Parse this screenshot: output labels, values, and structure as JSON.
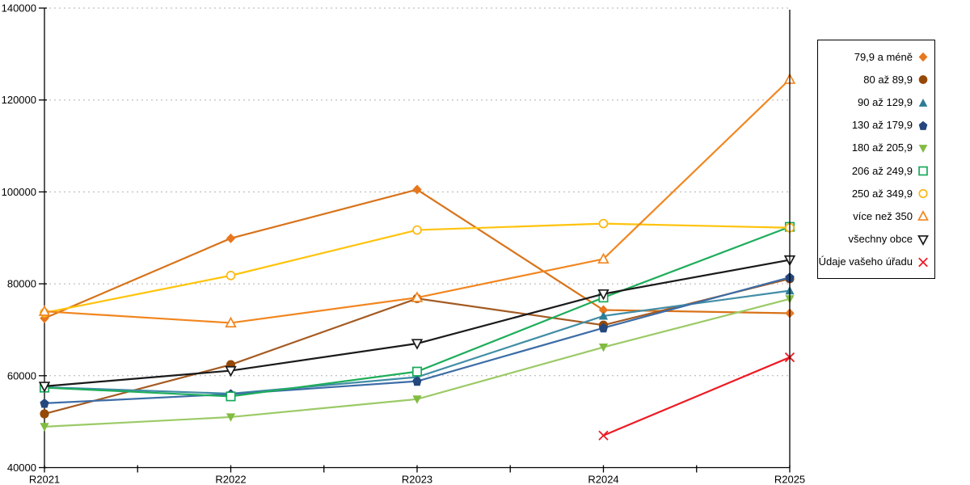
{
  "chart_data": {
    "type": "line",
    "title": "",
    "xlabel": "",
    "ylabel": "",
    "x_categories": [
      "R2021",
      "R2022",
      "R2023",
      "R2024",
      "R2025"
    ],
    "y_ticks": [
      40000,
      60000,
      80000,
      100000,
      120000,
      140000
    ],
    "y_tick_labels": [
      "40000",
      "60000",
      "80000",
      "100000",
      "120000",
      "140000"
    ],
    "ylim": [
      40000,
      140000
    ],
    "grid": "horizontal-dotted",
    "grid_color": "#b0b0b0",
    "axis_color": "#000000",
    "legend_position": "right",
    "series": [
      {
        "name": "79,9 a méně",
        "marker": "diamond-filled",
        "line_color": "#d8731a",
        "marker_color": "#e8761c",
        "values": [
          72500,
          89900,
          100500,
          74300,
          73600
        ]
      },
      {
        "name": "80 až 89,9",
        "marker": "circle-filled",
        "line_color": "#a45a21",
        "marker_color": "#964806",
        "values": [
          51700,
          62400,
          76800,
          71000,
          81100
        ]
      },
      {
        "name": "90 až 129,9",
        "marker": "triangle-up-filled",
        "line_color": "#418da6",
        "marker_color": "#2c7d95",
        "values": [
          57500,
          56100,
          59700,
          73000,
          78500
        ]
      },
      {
        "name": "130 až 179,9",
        "marker": "pentagon-filled",
        "line_color": "#3c6ca6",
        "marker_color": "#24477d",
        "values": [
          54000,
          56000,
          58800,
          70400,
          81400
        ]
      },
      {
        "name": "180 až 205,9",
        "marker": "triangle-down-filled",
        "line_color": "#9bca66",
        "marker_color": "#82bb42",
        "values": [
          48900,
          51000,
          54900,
          66200,
          76700
        ]
      },
      {
        "name": "206 až 249,9",
        "marker": "square-open",
        "line_color": "#1ead5b",
        "marker_color": "#17a95a",
        "values": [
          57400,
          55500,
          60900,
          77000,
          92400
        ]
      },
      {
        "name": "250 až 349,9",
        "marker": "circle-open",
        "line_color": "#ffc30b",
        "marker_color": "#fcb813",
        "values": [
          73700,
          81800,
          91700,
          93100,
          92200
        ]
      },
      {
        "name": "více než 350",
        "marker": "triangle-up-open",
        "line_color": "#f1861f",
        "marker_color": "#f1861f",
        "values": [
          74000,
          71500,
          77000,
          85400,
          124500
        ]
      },
      {
        "name": "všechny obce",
        "marker": "triangle-down-open",
        "line_color": "#1a1a1a",
        "marker_color": "#1a1a1a",
        "values": [
          57700,
          61100,
          67000,
          77800,
          85200
        ]
      },
      {
        "name": "Údaje vašeho úřadu",
        "marker": "x",
        "line_color": "#ed1b24",
        "marker_color": "#ed1b24",
        "values": [
          null,
          null,
          null,
          47000,
          64000
        ]
      }
    ]
  }
}
